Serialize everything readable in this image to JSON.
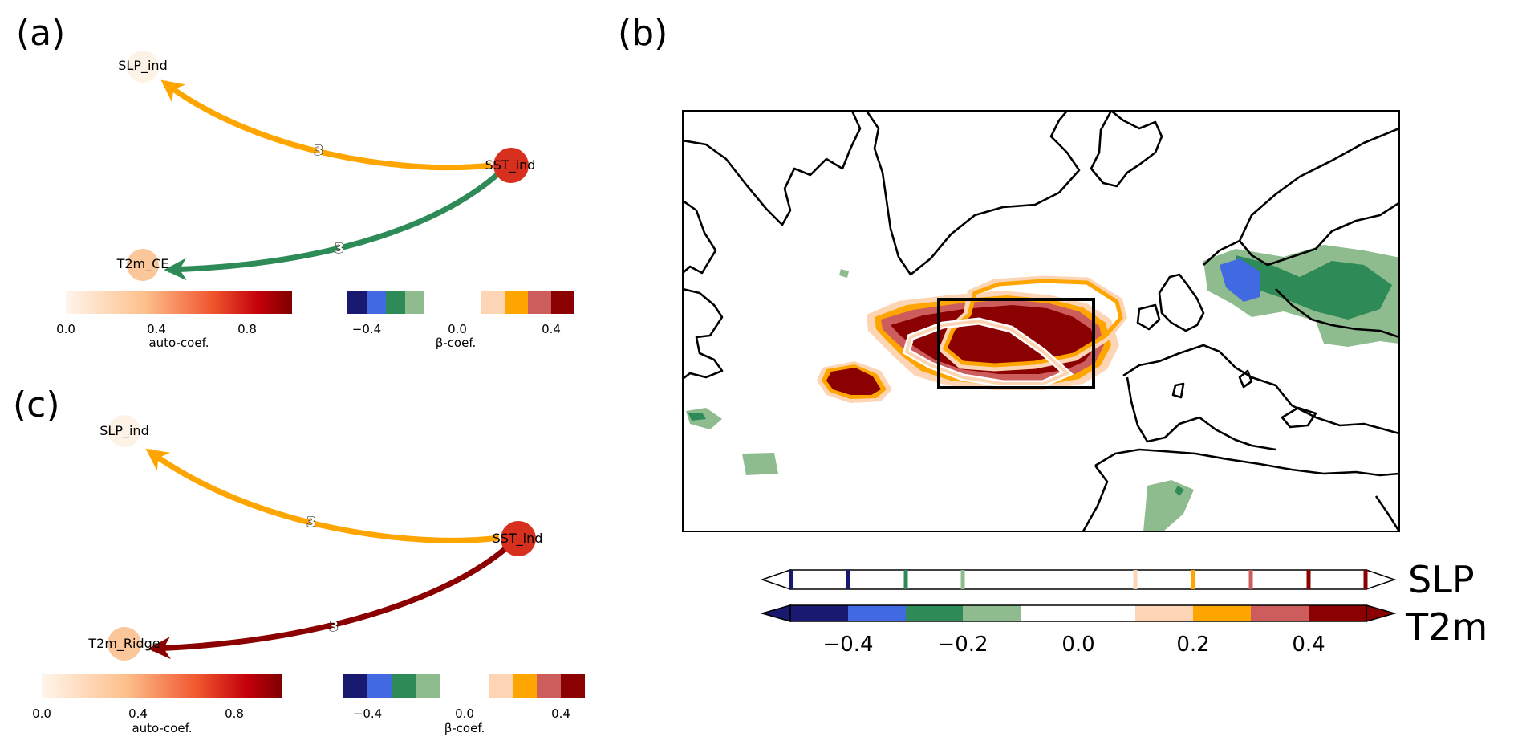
{
  "panels": {
    "a": {
      "label": "(a)",
      "nodes": {
        "slp": {
          "label": "SLP_ind",
          "color": "#fdf2e6"
        },
        "sst": {
          "label": "SST_ind",
          "color": "#d7301f"
        },
        "t2m": {
          "label": "T2m_CE",
          "color": "#fbc79a"
        }
      },
      "edges": {
        "sst_slp": {
          "label": "3",
          "color": "#ffa500"
        },
        "sst_t2m": {
          "label": "3",
          "color": "#2e8b57"
        }
      },
      "auto_cbar": {
        "title": "auto-coef.",
        "ticks": [
          "0.0",
          "0.4",
          "0.8"
        ]
      },
      "beta_cbar": {
        "title": "β-coef.",
        "ticks": [
          "−0.4",
          "0.0",
          "0.4"
        ]
      }
    },
    "b": {
      "label": "(b)",
      "slp_label": "SLP",
      "t2m_label": "T2m",
      "ticks": [
        "−0.4",
        "−0.2",
        "0.0",
        "0.2",
        "0.4"
      ]
    },
    "c": {
      "label": "(c)",
      "nodes": {
        "slp": {
          "label": "SLP_ind",
          "color": "#fdf2e6"
        },
        "sst": {
          "label": "SST_ind",
          "color": "#d7301f"
        },
        "t2m": {
          "label": "T2m_Ridge",
          "color": "#fbc79a"
        }
      },
      "edges": {
        "sst_slp": {
          "label": "3",
          "color": "#ffa500"
        },
        "sst_t2m": {
          "label": "3",
          "color": "#8b0000"
        }
      },
      "auto_cbar": {
        "title": "auto-coef.",
        "ticks": [
          "0.0",
          "0.4",
          "0.8"
        ]
      },
      "beta_cbar": {
        "title": "β-coef.",
        "ticks": [
          "−0.4",
          "0.0",
          "0.4"
        ]
      }
    }
  },
  "colors": {
    "diverging": [
      "#191970",
      "#4169e1",
      "#2e8b57",
      "#8fbc8f",
      "#ffffff",
      "#ffffff",
      "#fdd5b4",
      "#ffa500",
      "#cd5c5c",
      "#8b0000"
    ],
    "auto_start": "#fff5eb",
    "auto_end": "#8b0000"
  }
}
